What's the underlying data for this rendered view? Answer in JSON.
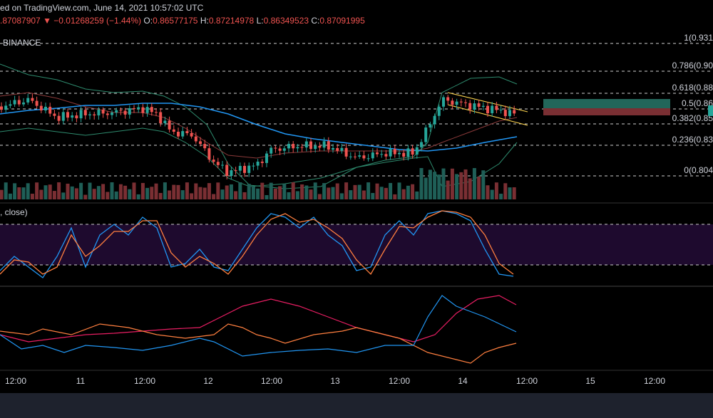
{
  "header": {
    "source": "ed on TradingView.com, June 14, 2021 10:57:02 UTC",
    "price": ".87087907",
    "change": "▼ −0.01268259 (−1.44%)",
    "ohlc": [
      {
        "label": "O:",
        "value": "0.86577175"
      },
      {
        "label": "H:",
        "value": "0.87214978"
      },
      {
        "label": "L:",
        "value": "0.86349523"
      },
      {
        "label": "C:",
        "value": "0.87091995"
      }
    ],
    "exchange": "BINANCE"
  },
  "fib_levels": [
    "1(0.931",
    "0.786(0.90",
    "0.618(0.88",
    "0.5(0.86",
    "0.382(0.85",
    "0.236(0.83",
    "0(0.804"
  ],
  "indicator_label": ", close)",
  "time_axis": [
    "12:00",
    "11",
    "12:00",
    "12",
    "12:00",
    "13",
    "12:00",
    "14",
    "12:00",
    "15",
    "12:00"
  ]
}
